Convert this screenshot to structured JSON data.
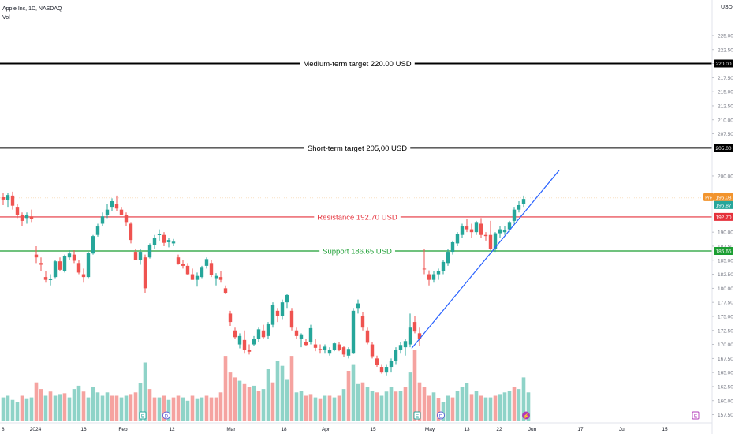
{
  "header": {
    "symbol_line": "Apple Inc, 1D, NASDAQ",
    "indicator": "Vol"
  },
  "chart_data": {
    "type": "candlestick",
    "currency": "USD",
    "y_range": [
      157.0,
      230.5
    ],
    "y_ticks": [
      157.5,
      160,
      162.5,
      165,
      167.5,
      170,
      172.5,
      175,
      177.5,
      180,
      182.5,
      185,
      187.5,
      190,
      195,
      200,
      205,
      207.5,
      210,
      212.5,
      215,
      217.5,
      220,
      222.5,
      225
    ],
    "x_axis": [
      "8",
      "2024",
      "16",
      "Feb",
      "12",
      "Mar",
      "18",
      "Apr",
      "15",
      "May",
      "13",
      "22",
      "Jun",
      "17",
      "Jul",
      "15"
    ],
    "horizontal_levels": [
      {
        "name": "medium-term",
        "label": "Medium-term target 220.00 USD",
        "value": 220.0,
        "tag": "220.00",
        "color": "#000000"
      },
      {
        "name": "short-term",
        "label": "Short-term target 205,00 USD",
        "value": 205.0,
        "tag": "205.00",
        "color": "#000000"
      },
      {
        "name": "resistance",
        "label": "Resistance 192.70 USD",
        "value": 192.7,
        "tag": "192.70",
        "color": "#e5313b"
      },
      {
        "name": "support",
        "label": "Support 186.65 USD",
        "value": 186.65,
        "tag": "186.65",
        "color": "#1b9e32"
      }
    ],
    "price_tags": [
      {
        "prefix": "Pre",
        "value": "196.08",
        "color": "#f2942d"
      },
      {
        "value": "195.87",
        "color": "#26a69a"
      }
    ],
    "trendline": {
      "from": {
        "bar": 86,
        "price": 169.3
      },
      "to": {
        "bar": 117,
        "price": 200.3
      },
      "color": "#2962ff"
    },
    "colors": {
      "up": "#26a69a",
      "down": "#ef5350",
      "vol_up": "#8fd3c8",
      "vol_down": "#f5a3a0"
    },
    "candles": [
      [
        196.2,
        196.9,
        194.8,
        195.8
      ],
      [
        195.7,
        197.0,
        194.5,
        196.6
      ],
      [
        196.5,
        197.2,
        194.0,
        194.7
      ],
      [
        194.5,
        195.0,
        192.5,
        193.0
      ],
      [
        193.0,
        193.5,
        191.0,
        192.0
      ],
      [
        192.5,
        193.5,
        191.5,
        193.0
      ],
      [
        192.8,
        194.0,
        191.8,
        192.4
      ],
      [
        186.0,
        187.5,
        184.5,
        185.5
      ],
      [
        184.5,
        185.5,
        183.0,
        184.2
      ],
      [
        182.0,
        183.0,
        181.0,
        181.5
      ],
      [
        181.5,
        182.5,
        180.5,
        181.6
      ],
      [
        182.0,
        185.0,
        181.8,
        184.8
      ],
      [
        184.8,
        185.5,
        183.0,
        183.3
      ],
      [
        183.0,
        186.0,
        182.8,
        185.8
      ],
      [
        185.5,
        186.8,
        185.0,
        186.2
      ],
      [
        186.0,
        186.8,
        184.5,
        184.9
      ],
      [
        184.5,
        185.0,
        182.5,
        182.8
      ],
      [
        182.5,
        183.5,
        181.0,
        182.0
      ],
      [
        182.0,
        186.5,
        181.8,
        186.3
      ],
      [
        186.2,
        189.5,
        186.0,
        189.3
      ],
      [
        189.5,
        191.5,
        189.2,
        191.0
      ],
      [
        191.5,
        193.5,
        191.0,
        192.8
      ],
      [
        193.0,
        195.0,
        192.5,
        194.0
      ],
      [
        194.5,
        196.0,
        193.8,
        195.5
      ],
      [
        195.0,
        196.5,
        193.8,
        194.2
      ],
      [
        194.0,
        194.5,
        193.0,
        193.0
      ],
      [
        193.0,
        193.5,
        191.0,
        191.8
      ],
      [
        191.5,
        191.8,
        188.0,
        188.6
      ],
      [
        186.5,
        187.0,
        185.0,
        185.1
      ],
      [
        185.0,
        187.0,
        184.2,
        186.5
      ],
      [
        185.5,
        186.0,
        179.2,
        180.0
      ],
      [
        185.5,
        188.0,
        185.3,
        187.7
      ],
      [
        187.7,
        189.5,
        187.0,
        189.0
      ],
      [
        189.5,
        190.5,
        188.5,
        189.6
      ],
      [
        189.5,
        190.0,
        187.5,
        188.1
      ],
      [
        188.2,
        189.0,
        187.3,
        188.6
      ],
      [
        188.0,
        188.8,
        187.5,
        188.3
      ],
      [
        185.5,
        186.0,
        184.2,
        184.4
      ],
      [
        184.4,
        185.0,
        183.5,
        184.0
      ],
      [
        184.0,
        184.5,
        182.3,
        182.5
      ],
      [
        182.5,
        183.5,
        181.5,
        181.5
      ],
      [
        181.5,
        182.8,
        180.3,
        182.2
      ],
      [
        182.0,
        184.0,
        181.8,
        183.8
      ],
      [
        184.0,
        185.5,
        183.5,
        185.2
      ],
      [
        184.5,
        185.0,
        182.0,
        182.4
      ],
      [
        181.8,
        182.7,
        180.5,
        182.2
      ],
      [
        182.0,
        183.0,
        181.0,
        181.5
      ],
      [
        180.0,
        180.5,
        179.0,
        179.2
      ],
      [
        175.5,
        176.0,
        173.3,
        174.0
      ],
      [
        172.5,
        173.0,
        171.0,
        171.3
      ],
      [
        170.0,
        172.0,
        169.3,
        171.5
      ],
      [
        170.8,
        172.5,
        168.5,
        169.0
      ],
      [
        169.0,
        170.0,
        168.2,
        168.7
      ],
      [
        170.0,
        171.5,
        169.8,
        171.0
      ],
      [
        171.0,
        173.0,
        170.5,
        172.7
      ],
      [
        172.5,
        173.5,
        171.0,
        171.3
      ],
      [
        171.5,
        174.0,
        171.0,
        173.6
      ],
      [
        173.5,
        177.5,
        173.0,
        177.0
      ],
      [
        176.0,
        176.5,
        174.0,
        175.0
      ],
      [
        175.0,
        178.0,
        174.5,
        177.5
      ],
      [
        177.5,
        179.0,
        176.5,
        178.8
      ],
      [
        176.0,
        176.5,
        172.5,
        173.0
      ],
      [
        172.5,
        173.0,
        171.0,
        171.5
      ],
      [
        171.0,
        172.0,
        169.5,
        171.8
      ],
      [
        170.5,
        171.0,
        169.8,
        169.9
      ],
      [
        170.5,
        173.5,
        170.0,
        172.9
      ],
      [
        170.0,
        171.0,
        168.8,
        169.4
      ],
      [
        169.2,
        170.0,
        168.5,
        169.1
      ],
      [
        169.0,
        170.0,
        168.5,
        169.6
      ],
      [
        168.5,
        169.5,
        168.0,
        169.0
      ],
      [
        169.0,
        170.3,
        168.8,
        170.2
      ],
      [
        170.0,
        170.5,
        168.8,
        169.0
      ],
      [
        169.5,
        169.8,
        167.8,
        168.2
      ],
      [
        168.0,
        169.5,
        167.5,
        169.2
      ],
      [
        168.5,
        176.5,
        168.3,
        176.0
      ],
      [
        176.5,
        178.0,
        175.5,
        177.3
      ],
      [
        175.0,
        175.8,
        172.5,
        173.0
      ],
      [
        172.5,
        173.0,
        170.0,
        170.3
      ],
      [
        170.0,
        170.5,
        167.5,
        167.9
      ],
      [
        167.5,
        168.0,
        166.0,
        166.3
      ],
      [
        166.0,
        166.5,
        164.8,
        165.0
      ],
      [
        165.0,
        166.5,
        164.5,
        166.0
      ],
      [
        166.0,
        167.5,
        165.0,
        167.1
      ],
      [
        167.0,
        169.5,
        166.5,
        169.0
      ],
      [
        169.0,
        170.5,
        168.5,
        169.9
      ],
      [
        169.5,
        171.0,
        168.0,
        170.6
      ],
      [
        170.0,
        175.5,
        169.5,
        173.0
      ],
      [
        174.0,
        175.0,
        172.0,
        172.3
      ],
      [
        172.0,
        173.0,
        169.8,
        171.0
      ],
      [
        183.5,
        187.0,
        182.5,
        183.4
      ],
      [
        182.5,
        183.2,
        180.5,
        181.5
      ],
      [
        181.5,
        183.0,
        181.0,
        182.5
      ],
      [
        182.5,
        183.5,
        181.5,
        183.0
      ],
      [
        183.0,
        185.0,
        182.5,
        184.7
      ],
      [
        184.5,
        187.0,
        184.0,
        186.5
      ],
      [
        186.5,
        188.5,
        186.0,
        188.2
      ],
      [
        188.0,
        190.0,
        187.5,
        189.7
      ],
      [
        189.5,
        191.5,
        189.0,
        191.0
      ],
      [
        191.0,
        192.3,
        190.0,
        190.5
      ],
      [
        190.5,
        191.5,
        189.0,
        190.0
      ],
      [
        190.0,
        192.0,
        189.5,
        191.8
      ],
      [
        191.5,
        192.5,
        189.0,
        189.5
      ],
      [
        189.5,
        190.0,
        188.5,
        189.3
      ],
      [
        189.5,
        192.0,
        186.8,
        187.0
      ],
      [
        187.0,
        190.0,
        186.5,
        189.8
      ],
      [
        189.8,
        191.0,
        189.0,
        190.5
      ],
      [
        190.0,
        191.0,
        189.5,
        190.3
      ],
      [
        190.5,
        192.0,
        190.0,
        191.8
      ],
      [
        192.0,
        194.5,
        191.5,
        194.0
      ],
      [
        194.0,
        195.5,
        193.5,
        194.8
      ],
      [
        195.0,
        196.5,
        194.5,
        195.9
      ]
    ],
    "volumes": [
      [
        1,
        0.28
      ],
      [
        1,
        0.3
      ],
      [
        1,
        0.25
      ],
      [
        1,
        0.22
      ],
      [
        0,
        0.3
      ],
      [
        1,
        0.26
      ],
      [
        1,
        0.28
      ],
      [
        0,
        0.46
      ],
      [
        0,
        0.38
      ],
      [
        1,
        0.3
      ],
      [
        0,
        0.35
      ],
      [
        1,
        0.3
      ],
      [
        1,
        0.32
      ],
      [
        0,
        0.33
      ],
      [
        1,
        0.28
      ],
      [
        1,
        0.38
      ],
      [
        1,
        0.42
      ],
      [
        0,
        0.35
      ],
      [
        1,
        0.28
      ],
      [
        1,
        0.4
      ],
      [
        1,
        0.34
      ],
      [
        1,
        0.3
      ],
      [
        1,
        0.34
      ],
      [
        0,
        0.3
      ],
      [
        0,
        0.3
      ],
      [
        1,
        0.28
      ],
      [
        1,
        0.3
      ],
      [
        0,
        0.32
      ],
      [
        0,
        0.34
      ],
      [
        1,
        0.45
      ],
      [
        1,
        0.7
      ],
      [
        0,
        0.38
      ],
      [
        0,
        0.28
      ],
      [
        1,
        0.28
      ],
      [
        0,
        0.3
      ],
      [
        1,
        0.25
      ],
      [
        0,
        0.28
      ],
      [
        0,
        0.3
      ],
      [
        1,
        0.28
      ],
      [
        1,
        0.24
      ],
      [
        0,
        0.3
      ],
      [
        1,
        0.26
      ],
      [
        1,
        0.28
      ],
      [
        0,
        0.3
      ],
      [
        0,
        0.28
      ],
      [
        0,
        0.28
      ],
      [
        0,
        0.34
      ],
      [
        0,
        0.78
      ],
      [
        0,
        0.58
      ],
      [
        0,
        0.52
      ],
      [
        1,
        0.48
      ],
      [
        0,
        0.44
      ],
      [
        0,
        0.4
      ],
      [
        1,
        0.42
      ],
      [
        0,
        0.36
      ],
      [
        1,
        0.38
      ],
      [
        1,
        0.62
      ],
      [
        0,
        0.46
      ],
      [
        1,
        0.72
      ],
      [
        1,
        0.66
      ],
      [
        1,
        0.5
      ],
      [
        0,
        0.78
      ],
      [
        1,
        0.34
      ],
      [
        1,
        0.36
      ],
      [
        0,
        0.3
      ],
      [
        0,
        0.32
      ],
      [
        1,
        0.28
      ],
      [
        0,
        0.26
      ],
      [
        1,
        0.3
      ],
      [
        0,
        0.3
      ],
      [
        1,
        0.28
      ],
      [
        0,
        0.3
      ],
      [
        1,
        0.38
      ],
      [
        0,
        0.6
      ],
      [
        1,
        0.68
      ],
      [
        1,
        0.44
      ],
      [
        0,
        0.46
      ],
      [
        1,
        0.4
      ],
      [
        1,
        0.36
      ],
      [
        0,
        0.34
      ],
      [
        1,
        0.3
      ],
      [
        1,
        0.35
      ],
      [
        1,
        0.4
      ],
      [
        0,
        0.35
      ],
      [
        1,
        0.36
      ],
      [
        0,
        0.4
      ],
      [
        1,
        0.58
      ],
      [
        0,
        0.85
      ],
      [
        0,
        0.46
      ],
      [
        0,
        0.4
      ],
      [
        0,
        0.3
      ],
      [
        1,
        0.34
      ],
      [
        0,
        0.27
      ],
      [
        1,
        0.22
      ],
      [
        1,
        0.3
      ],
      [
        0,
        0.28
      ],
      [
        1,
        0.36
      ],
      [
        1,
        0.4
      ],
      [
        1,
        0.45
      ],
      [
        0,
        0.32
      ],
      [
        1,
        0.36
      ],
      [
        0,
        0.3
      ],
      [
        1,
        0.28
      ],
      [
        1,
        0.28
      ],
      [
        0,
        0.3
      ],
      [
        1,
        0.32
      ],
      [
        1,
        0.34
      ],
      [
        1,
        0.36
      ],
      [
        0,
        0.4
      ],
      [
        1,
        0.38
      ],
      [
        1,
        0.52
      ],
      [
        1,
        0.34
      ]
    ],
    "events": [
      {
        "label": "E",
        "bar": 29,
        "color": "#26a69a"
      },
      {
        "label": "D",
        "bar": 34,
        "color": "#5b5bd6"
      },
      {
        "label": "E",
        "bar": 87,
        "color": "#26a69a"
      },
      {
        "label": "D",
        "bar": 92,
        "color": "#5b5bd6"
      },
      {
        "label": "⚡",
        "bar": 110,
        "color": "#b039b8"
      },
      {
        "label": "E",
        "bar": 140,
        "color": "#b039b8"
      }
    ]
  }
}
